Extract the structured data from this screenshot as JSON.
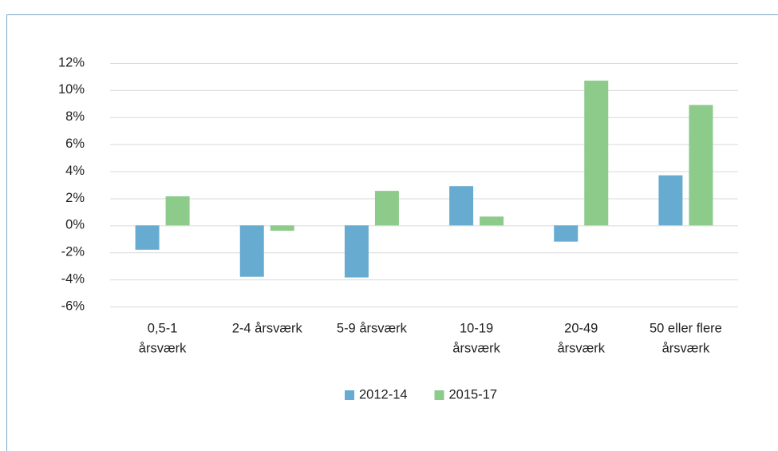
{
  "chart_data": {
    "type": "bar",
    "categories": [
      [
        "0,5-1",
        "årsværk"
      ],
      [
        "2-4 årsværk"
      ],
      [
        "5-9 årsværk"
      ],
      [
        "10-19",
        "årsværk"
      ],
      [
        "20-49",
        "årsværk"
      ],
      [
        "50 eller flere",
        "årsværk"
      ]
    ],
    "series": [
      {
        "name": "2012-14",
        "color": "#67abd0",
        "values": [
          -1.8,
          -3.8,
          -3.85,
          2.9,
          -1.2,
          3.7
        ]
      },
      {
        "name": "2015-17",
        "color": "#8ccb8a",
        "values": [
          2.15,
          -0.4,
          2.55,
          0.65,
          10.7,
          8.9
        ]
      }
    ],
    "ylim": [
      -6,
      12
    ],
    "yticks": [
      {
        "value": -6,
        "label": "-6%"
      },
      {
        "value": -4,
        "label": "-4%"
      },
      {
        "value": -2,
        "label": "-2%"
      },
      {
        "value": 0,
        "label": "0%"
      },
      {
        "value": 2,
        "label": "2%"
      },
      {
        "value": 4,
        "label": "4%"
      },
      {
        "value": 6,
        "label": "6%"
      },
      {
        "value": 8,
        "label": "8%"
      },
      {
        "value": 10,
        "label": "10%"
      },
      {
        "value": 12,
        "label": "12%"
      }
    ],
    "grid": true,
    "legend": "bottom"
  }
}
